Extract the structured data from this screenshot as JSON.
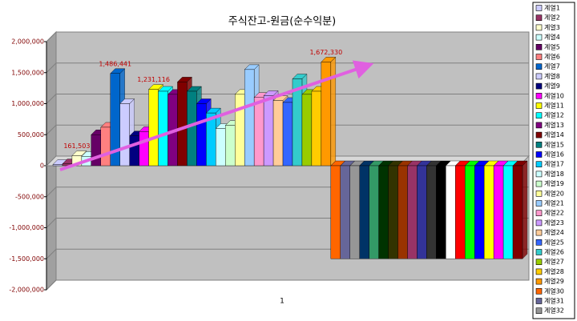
{
  "chart_data": {
    "type": "bar",
    "title": "주식잔고-원금(순수익분)",
    "categories": [
      "1"
    ],
    "ylim": [
      -2000000,
      2000000
    ],
    "yticks": [
      {
        "value": -2000000,
        "label": "-2,000,000"
      },
      {
        "value": -1500000,
        "label": "-1,500,000"
      },
      {
        "value": -1000000,
        "label": "-1,000,000"
      },
      {
        "value": -500000,
        "label": "-500,000"
      },
      0,
      {
        "value": 500000,
        "label": "500,000"
      },
      {
        "value": 1000000,
        "label": "1,000,000"
      },
      {
        "value": 1500000,
        "label": "1,500,000"
      },
      {
        "value": 2000000,
        "label": "2,000,000"
      }
    ],
    "grid": true,
    "legend": "right",
    "series": [
      {
        "name": "계열1",
        "color": "#ccccff",
        "values": [
          20000
        ]
      },
      {
        "name": "계열2",
        "color": "#993366",
        "values": [
          30000
        ]
      },
      {
        "name": "계열3",
        "color": "#ffffcc",
        "values": [
          161503
        ],
        "value_labels": [
          "161,503"
        ]
      },
      {
        "name": "계열4",
        "color": "#ccffff",
        "values": [
          150000
        ]
      },
      {
        "name": "계열5",
        "color": "#660066",
        "values": [
          500000
        ]
      },
      {
        "name": "계열6",
        "color": "#ff8080",
        "values": [
          620000
        ]
      },
      {
        "name": "계열7",
        "color": "#0066cc",
        "values": [
          1486441
        ],
        "value_labels": [
          "1,486,441"
        ]
      },
      {
        "name": "계열8",
        "color": "#ccccff",
        "values": [
          1000000
        ]
      },
      {
        "name": "계열9",
        "color": "#000080",
        "values": [
          480000
        ]
      },
      {
        "name": "계열10",
        "color": "#ff00ff",
        "values": [
          550000
        ]
      },
      {
        "name": "계열11",
        "color": "#ffff00",
        "values": [
          1231116
        ],
        "value_labels": [
          "1,231,116"
        ]
      },
      {
        "name": "계열12",
        "color": "#00ffff",
        "values": [
          1200000
        ]
      },
      {
        "name": "계열13",
        "color": "#800080",
        "values": [
          1150000
        ]
      },
      {
        "name": "계열14",
        "color": "#800000",
        "values": [
          1350000
        ]
      },
      {
        "name": "계열15",
        "color": "#008080",
        "values": [
          1200000
        ]
      },
      {
        "name": "계열16",
        "color": "#0000ff",
        "values": [
          1000000
        ]
      },
      {
        "name": "계열17",
        "color": "#00ccff",
        "values": [
          850000
        ]
      },
      {
        "name": "계열18",
        "color": "#ccffff",
        "values": [
          600000
        ]
      },
      {
        "name": "계열19",
        "color": "#ccffcc",
        "values": [
          650000
        ]
      },
      {
        "name": "계열20",
        "color": "#ffff99",
        "values": [
          1150000
        ]
      },
      {
        "name": "계열21",
        "color": "#99ccff",
        "values": [
          1550000
        ]
      },
      {
        "name": "계열22",
        "color": "#ff99cc",
        "values": [
          1100000
        ]
      },
      {
        "name": "계열23",
        "color": "#cc99ff",
        "values": [
          1130000
        ]
      },
      {
        "name": "계열24",
        "color": "#ffcc99",
        "values": [
          1050000
        ]
      },
      {
        "name": "계열25",
        "color": "#3366ff",
        "values": [
          1020000
        ]
      },
      {
        "name": "계열26",
        "color": "#33cccc",
        "values": [
          1400000
        ]
      },
      {
        "name": "계열27",
        "color": "#99cc00",
        "values": [
          1150000
        ]
      },
      {
        "name": "계열28",
        "color": "#ffcc00",
        "values": [
          1200000
        ]
      },
      {
        "name": "계열29",
        "color": "#ff9900",
        "values": [
          1672330
        ],
        "value_labels": [
          "1,672,330"
        ]
      },
      {
        "name": "계열30",
        "color": "#ff6600",
        "values": [
          -1500000
        ]
      },
      {
        "name": "계열31",
        "color": "#666699",
        "values": [
          -1500000
        ]
      },
      {
        "name": "계열32",
        "color": "#969696",
        "values": [
          -1500000
        ]
      },
      {
        "color": "#003366",
        "values": [
          -1500000
        ]
      },
      {
        "color": "#339966",
        "values": [
          -1500000
        ]
      },
      {
        "color": "#003300",
        "values": [
          -1500000
        ]
      },
      {
        "color": "#333300",
        "values": [
          -1500000
        ]
      },
      {
        "color": "#993300",
        "values": [
          -1500000
        ]
      },
      {
        "color": "#993366",
        "values": [
          -1500000
        ]
      },
      {
        "color": "#333399",
        "values": [
          -1500000
        ]
      },
      {
        "color": "#333333",
        "values": [
          -1500000
        ]
      },
      {
        "color": "#000000",
        "values": [
          -1500000
        ]
      },
      {
        "color": "#ffffff",
        "values": [
          -1500000
        ]
      },
      {
        "color": "#ff0000",
        "values": [
          -1500000
        ]
      },
      {
        "color": "#00ff00",
        "values": [
          -1500000
        ]
      },
      {
        "color": "#0000ff",
        "values": [
          -1500000
        ]
      },
      {
        "color": "#ffff00",
        "values": [
          -1500000
        ]
      },
      {
        "color": "#ff00ff",
        "values": [
          -1500000
        ]
      },
      {
        "color": "#00ffff",
        "values": [
          -1500000
        ]
      },
      {
        "color": "#800000",
        "values": [
          -1500000
        ]
      }
    ]
  }
}
